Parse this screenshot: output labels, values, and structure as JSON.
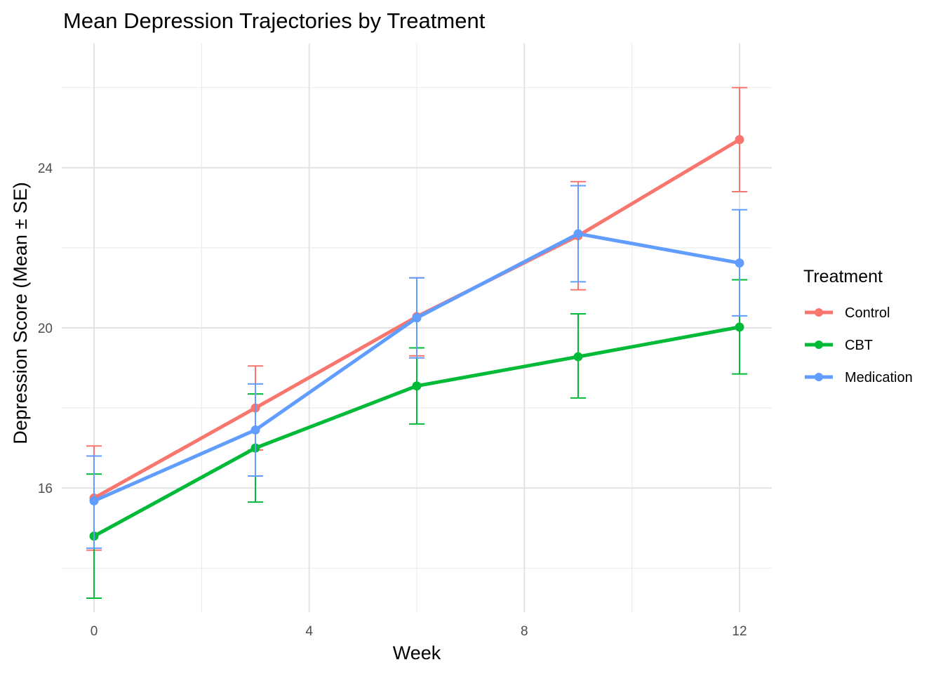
{
  "chart_data": {
    "type": "line",
    "title": "Mean Depression Trajectories by Treatment",
    "xlabel": "Week",
    "ylabel": "Depression Score (Mean ± SE)",
    "xlim": [
      -0.6,
      12.6
    ],
    "ylim": [
      12.9,
      27.1
    ],
    "x_ticks": [
      0,
      4,
      8,
      12
    ],
    "x_tick_labels": [
      "0",
      "4",
      "8",
      "12"
    ],
    "y_ticks": [
      16,
      20,
      24
    ],
    "y_tick_labels": [
      "16",
      "20",
      "24"
    ],
    "x_minor_ticks": [
      2,
      6,
      10
    ],
    "y_minor_ticks": [
      14,
      18,
      22,
      26
    ],
    "grid": true,
    "legend": {
      "title": "Treatment",
      "position": "right"
    },
    "x": [
      0,
      3,
      6,
      9,
      12
    ],
    "series": [
      {
        "name": "Control",
        "color": "#F8766D",
        "values": [
          15.75,
          18.0,
          20.28,
          22.3,
          24.7
        ],
        "error_low": [
          14.45,
          16.95,
          19.3,
          20.95,
          23.4
        ],
        "error_high": [
          17.05,
          19.05,
          21.25,
          23.65,
          26.0
        ]
      },
      {
        "name": "CBT",
        "color": "#00BA38",
        "values": [
          14.8,
          17.0,
          18.55,
          19.28,
          20.02
        ],
        "error_low": [
          13.25,
          15.65,
          17.6,
          18.25,
          18.85
        ],
        "error_high": [
          16.35,
          18.35,
          19.5,
          20.35,
          21.2
        ]
      },
      {
        "name": "Medication",
        "color": "#619CFF",
        "values": [
          15.68,
          17.45,
          20.25,
          22.35,
          21.62
        ],
        "error_low": [
          14.5,
          16.3,
          19.25,
          21.15,
          20.3
        ],
        "error_high": [
          16.8,
          18.6,
          21.25,
          23.55,
          22.95
        ]
      }
    ]
  }
}
